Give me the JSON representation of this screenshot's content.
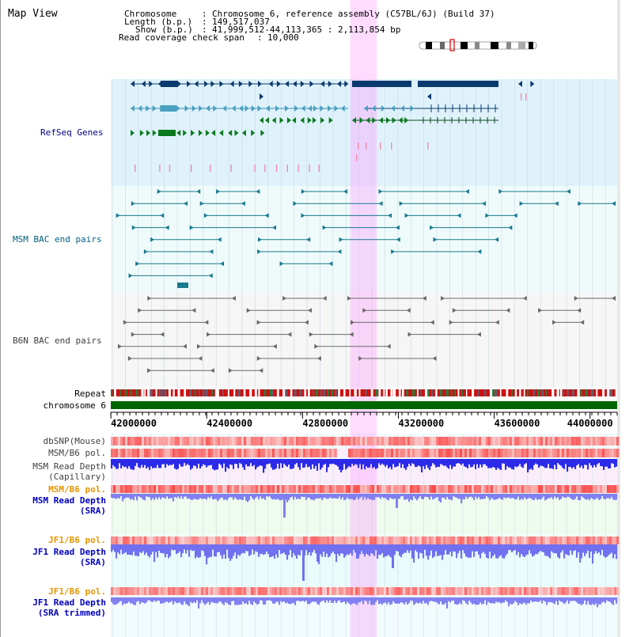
{
  "title": "Map View",
  "header": {
    "chromosome_key": "Chromosome",
    "chromosome_value": "Chromosome 6, reference assembly (C57BL/6J) (Build 37)",
    "length_key": "Length (b.p.)",
    "length_value": "149,517,037",
    "show_key": "Show (b.p.)",
    "show_value": "41,999,512-44,113,365 : 2,113,854 bp",
    "span_key": "Read coverage check span",
    "span_value": "10,000"
  },
  "tracks": {
    "refseq": {
      "label": "RefSeq Genes",
      "color": "#000080"
    },
    "msm_bac": {
      "label": "MSM BAC end pairs",
      "color": "#006080"
    },
    "b6n_bac": {
      "label": "B6N BAC end pairs",
      "color": "#404040"
    },
    "repeat": {
      "label": "Repeat"
    },
    "chromosome": {
      "label": "chromosome 6"
    },
    "dbsnp": {
      "label": "dbSNP(Mouse)",
      "color": "#404040"
    },
    "msm_b6_pol": {
      "label": "MSM/B6 pol.",
      "color": "#404040"
    },
    "msm_depth_cap": {
      "label1": "MSM Read Depth",
      "label2": "(Capillary)",
      "color": "#404040"
    },
    "msm_b6_pol2": {
      "label": "MSM/B6 pol.",
      "color": "#e69500"
    },
    "msm_depth_sra": {
      "label1": "MSM Read Depth",
      "label2": "(SRA)",
      "color": "#0000c0"
    },
    "jf1_b6_pol": {
      "label": "JF1/B6 pol.",
      "color": "#e69500"
    },
    "jf1_depth_sra": {
      "label1": "JF1 Read Depth",
      "label2": "(SRA)",
      "color": "#0000c0"
    },
    "jf1_b6_pol2": {
      "label": "JF1/B6 pol.",
      "color": "#e69500"
    },
    "jf1_depth_trim": {
      "label1": "JF1 Read Depth",
      "label2": "(SRA trimmed)",
      "color": "#0000c0"
    }
  },
  "axis": {
    "ticks": [
      "42000000",
      "42400000",
      "42800000",
      "43200000",
      "43600000",
      "44000000"
    ],
    "min": 41999512,
    "max": 44113365
  },
  "highlight": {
    "start": 42999000,
    "end": 43110000,
    "color": "#ff99ff"
  }
}
